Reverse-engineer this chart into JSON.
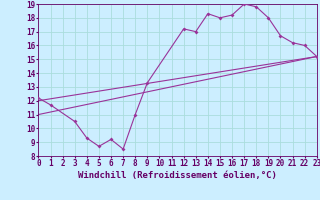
{
  "xlabel": "Windchill (Refroidissement éolien,°C)",
  "bg_color": "#cceeff",
  "line_color": "#993399",
  "grid_color": "#aadddd",
  "text_color": "#660066",
  "x_min": 0,
  "x_max": 23,
  "y_min": 8,
  "y_max": 19,
  "curve1_x": [
    0,
    1,
    3,
    4,
    5,
    6,
    7,
    8,
    9,
    12,
    13,
    14,
    15,
    16,
    17,
    18,
    19,
    20,
    21,
    22,
    23
  ],
  "curve1_y": [
    12.2,
    11.7,
    10.5,
    9.3,
    8.7,
    9.2,
    8.5,
    11.0,
    13.3,
    17.2,
    17.0,
    18.3,
    18.0,
    18.2,
    19.0,
    18.8,
    18.0,
    16.7,
    16.2,
    16.0,
    15.2
  ],
  "line2_x": [
    0,
    23
  ],
  "line2_y": [
    11.0,
    15.2
  ],
  "line3_x": [
    0,
    23
  ],
  "line3_y": [
    12.0,
    15.2
  ],
  "tick_fontsize": 5.5,
  "xlabel_fontsize": 6.5
}
